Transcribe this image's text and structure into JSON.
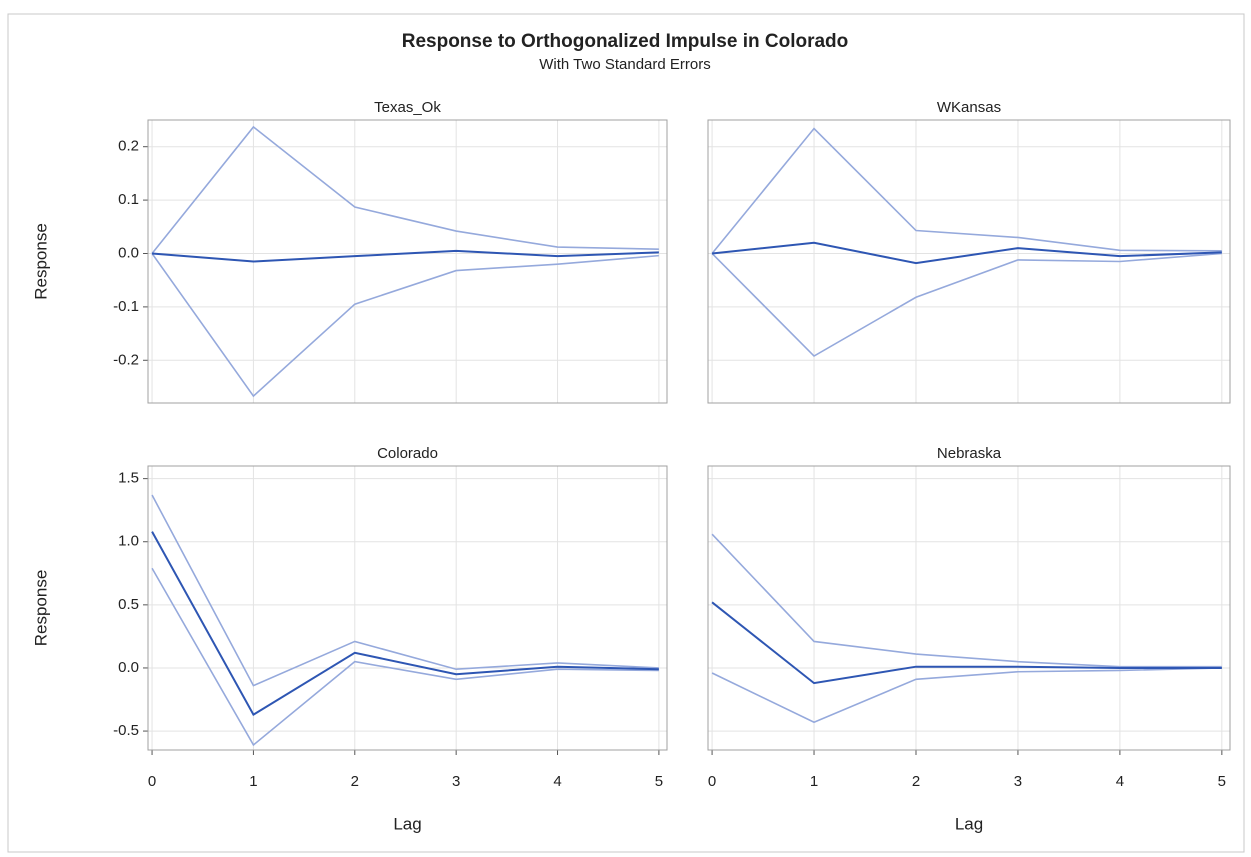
{
  "title": "Response to Orthogonalized Impulse in Colorado",
  "subtitle": "With Two Standard Errors",
  "chart_data": [
    {
      "type": "line",
      "title": "Texas_Ok",
      "ylabel": "Response",
      "show_ytick_labels": true,
      "show_xtick_labels": false,
      "x": [
        0,
        1,
        2,
        3,
        4,
        5
      ],
      "xlim": [
        -0.04,
        5.08
      ],
      "xticks": [
        0,
        1,
        2,
        3,
        4,
        5
      ],
      "ylim": [
        -0.28,
        0.25
      ],
      "yticks": [
        -0.2,
        -0.1,
        {
          "value": 0,
          "label": "0.0"
        },
        0.1,
        0.2
      ],
      "grid": true,
      "series": [
        {
          "color": "#95a9dc",
          "values": [
            0,
            0.237,
            0.087,
            0.042,
            0.012,
            0.008
          ]
        },
        {
          "color": "#95a9dc",
          "values": [
            0,
            -0.267,
            -0.095,
            -0.032,
            -0.02,
            -0.004
          ]
        },
        {
          "color": "#2e56b3",
          "values": [
            0,
            -0.015,
            -0.005,
            0.005,
            -0.005,
            0.002
          ]
        }
      ]
    },
    {
      "type": "line",
      "title": "WKansas",
      "show_ytick_labels": false,
      "show_xtick_labels": false,
      "x": [
        0,
        1,
        2,
        3,
        4,
        5
      ],
      "xlim": [
        -0.04,
        5.08
      ],
      "xticks": [
        0,
        1,
        2,
        3,
        4,
        5
      ],
      "ylim": [
        -0.28,
        0.25
      ],
      "yticks": [
        -0.2,
        -0.1,
        {
          "value": 0,
          "label": "0.0"
        },
        0.1,
        0.2
      ],
      "grid": true,
      "series": [
        {
          "color": "#95a9dc",
          "values": [
            0,
            0.234,
            0.043,
            0.03,
            0.006,
            0.005
          ]
        },
        {
          "color": "#95a9dc",
          "values": [
            0,
            -0.192,
            -0.082,
            -0.012,
            -0.015,
            0
          ]
        },
        {
          "color": "#2e56b3",
          "values": [
            0,
            0.02,
            -0.018,
            0.01,
            -0.005,
            0.002
          ]
        }
      ]
    },
    {
      "type": "line",
      "title": "Colorado",
      "ylabel": "Response",
      "xlabel": "Lag",
      "show_ytick_labels": true,
      "show_xtick_labels": true,
      "x": [
        0,
        1,
        2,
        3,
        4,
        5
      ],
      "xlim": [
        -0.04,
        5.08
      ],
      "xticks": [
        0,
        1,
        2,
        3,
        4,
        5
      ],
      "ylim": [
        -0.65,
        1.6
      ],
      "yticks": [
        -0.5,
        {
          "value": 0,
          "label": "0.0"
        },
        0.5,
        {
          "value": 1,
          "label": "1.0"
        },
        1.5
      ],
      "grid": true,
      "series": [
        {
          "color": "#95a9dc",
          "values": [
            1.37,
            -0.14,
            0.21,
            -0.01,
            0.04,
            0.0
          ]
        },
        {
          "color": "#95a9dc",
          "values": [
            0.79,
            -0.61,
            0.05,
            -0.09,
            -0.01,
            -0.02
          ]
        },
        {
          "color": "#2e56b3",
          "values": [
            1.08,
            -0.37,
            0.12,
            -0.05,
            0.01,
            -0.01
          ]
        }
      ]
    },
    {
      "type": "line",
      "title": "Nebraska",
      "xlabel": "Lag",
      "show_ytick_labels": false,
      "show_xtick_labels": true,
      "x": [
        0,
        1,
        2,
        3,
        4,
        5
      ],
      "xlim": [
        -0.04,
        5.08
      ],
      "xticks": [
        0,
        1,
        2,
        3,
        4,
        5
      ],
      "ylim": [
        -0.65,
        1.6
      ],
      "yticks": [
        -0.5,
        {
          "value": 0,
          "label": "0.0"
        },
        0.5,
        {
          "value": 1,
          "label": "1.0"
        },
        1.5
      ],
      "grid": true,
      "series": [
        {
          "color": "#95a9dc",
          "values": [
            1.06,
            0.21,
            0.11,
            0.05,
            0.01,
            0.01
          ]
        },
        {
          "color": "#95a9dc",
          "values": [
            -0.04,
            -0.43,
            -0.09,
            -0.03,
            -0.02,
            0.0
          ]
        },
        {
          "color": "#2e56b3",
          "values": [
            0.52,
            -0.12,
            0.01,
            0.01,
            0.0,
            0.0
          ]
        }
      ]
    }
  ]
}
